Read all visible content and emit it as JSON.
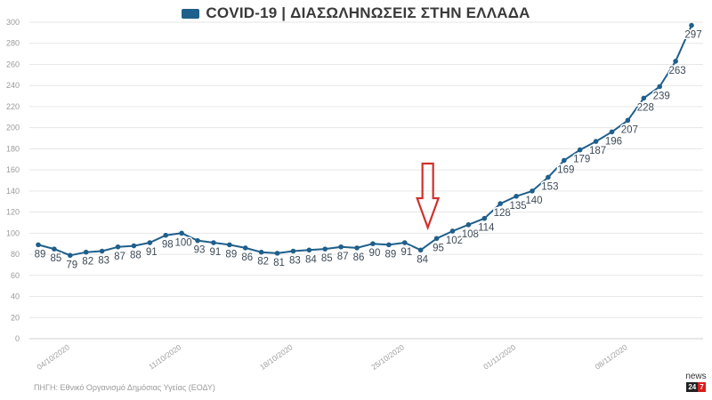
{
  "chart_data": {
    "type": "line",
    "title": "COVID-19 | ΔΙΑΣΩΛΗΝΩΣΕΙΣ ΣΤΗΝ ΕΛΛΑΔΑ",
    "xlabel": "",
    "ylabel": "",
    "ylim": [
      0,
      300
    ],
    "yticks": [
      0,
      20,
      40,
      60,
      80,
      100,
      120,
      140,
      160,
      180,
      200,
      220,
      240,
      260,
      280,
      300
    ],
    "grid": true,
    "legend": "top",
    "x_tick_labels": [
      "04/10/2020",
      "11/10/2020",
      "18/10/2020",
      "25/10/2020",
      "01/11/2020",
      "08/11/2020"
    ],
    "x_tick_index": [
      2,
      9,
      16,
      23,
      30,
      37
    ],
    "series": [
      {
        "name": "COVID-19 | ΔΙΑΣΩΛΗΝΩΣΕΙΣ ΣΤΗΝ ΕΛΛΑΔΑ",
        "color": "#1f5f8b",
        "values": [
          89,
          85,
          79,
          82,
          83,
          87,
          88,
          91,
          98,
          100,
          93,
          91,
          89,
          86,
          82,
          81,
          83,
          84,
          85,
          87,
          86,
          90,
          89,
          91,
          84,
          95,
          102,
          108,
          114,
          128,
          135,
          140,
          153,
          169,
          179,
          187,
          196,
          207,
          228,
          239,
          263,
          297
        ]
      }
    ]
  },
  "source_text": "ΠΗΓΗ: Εθνικό Οργανισμό Δημόσιας Υγείας (ΕΟΔΥ)",
  "logo": {
    "top": "news",
    "badge_left": "24",
    "badge_right": "7"
  },
  "annotation_arrow_color": "#d0312d",
  "annotation_arrow_index": 24
}
